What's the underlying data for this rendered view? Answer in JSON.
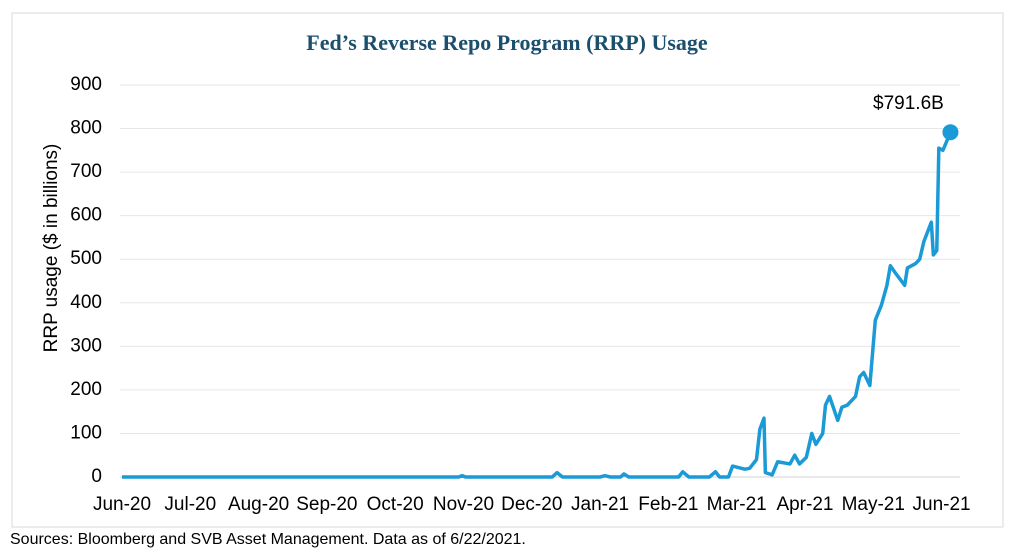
{
  "chart_data": {
    "type": "line",
    "title": "Fed’s Reverse Repo Program (RRP) Usage",
    "y_label": "RRP usage ($ in billions)",
    "source": "Sources: Bloomberg and SVB Asset Management. Data as of 6/22/2021.",
    "annotation": "$791.6B",
    "xlim": [
      0,
      12.27
    ],
    "xticks": [
      {
        "value": 0,
        "label": "Jun-20"
      },
      {
        "value": 1,
        "label": "Jul-20"
      },
      {
        "value": 2,
        "label": "Aug-20"
      },
      {
        "value": 3,
        "label": "Sep-20"
      },
      {
        "value": 4,
        "label": "Oct-20"
      },
      {
        "value": 5,
        "label": "Nov-20"
      },
      {
        "value": 6,
        "label": "Dec-20"
      },
      {
        "value": 7,
        "label": "Jan-21"
      },
      {
        "value": 8,
        "label": "Feb-21"
      },
      {
        "value": 9,
        "label": "Mar-21"
      },
      {
        "value": 10,
        "label": "Apr-21"
      },
      {
        "value": 11,
        "label": "May-21"
      },
      {
        "value": 12,
        "label": "Jun-21"
      }
    ],
    "ylim": [
      0,
      900
    ],
    "yticks": [
      0,
      100,
      200,
      300,
      400,
      500,
      600,
      700,
      800,
      900
    ],
    "grid": true,
    "series": [
      {
        "name": "RRP usage",
        "color": "#1a9ad6",
        "x": [
          0,
          4.93,
          4.98,
          5.03,
          6.3,
          6.37,
          6.45,
          7.0,
          7.07,
          7.15,
          7.3,
          7.35,
          7.42,
          8.15,
          8.21,
          8.3,
          8.6,
          8.69,
          8.75,
          8.88,
          8.94,
          9.12,
          9.19,
          9.29,
          9.34,
          9.4,
          9.42,
          9.52,
          9.6,
          9.78,
          9.85,
          9.92,
          10.02,
          10.1,
          10.16,
          10.26,
          10.3,
          10.36,
          10.48,
          10.54,
          10.62,
          10.74,
          10.8,
          10.86,
          10.95,
          11.03,
          11.12,
          11.2,
          11.25,
          11.34,
          11.46,
          11.5,
          11.62,
          11.68,
          11.74,
          11.85,
          11.88,
          11.93,
          11.96,
          12.02,
          12.06,
          12.13
        ],
        "values": [
          0,
          0,
          3,
          0,
          0,
          10,
          0,
          0,
          3,
          0,
          0,
          7,
          0,
          0,
          12,
          0,
          0,
          12,
          0,
          0,
          25,
          18,
          20,
          40,
          110,
          135,
          10,
          5,
          35,
          30,
          50,
          30,
          45,
          100,
          75,
          100,
          165,
          185,
          130,
          160,
          165,
          185,
          230,
          240,
          210,
          360,
          395,
          440,
          485,
          465,
          440,
          480,
          490,
          500,
          540,
          585,
          510,
          520,
          755,
          750,
          765,
          791.6
        ]
      }
    ]
  }
}
